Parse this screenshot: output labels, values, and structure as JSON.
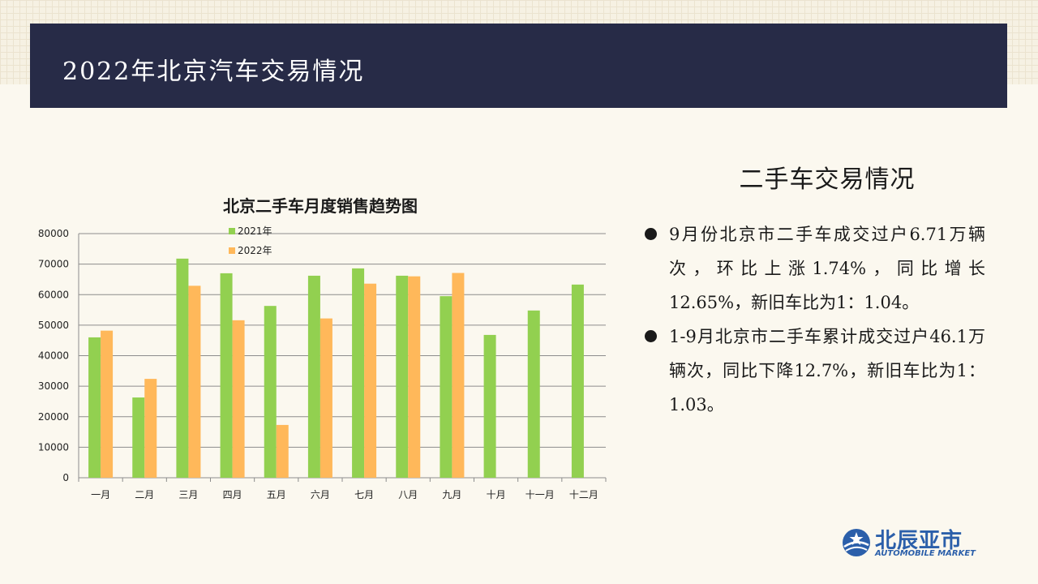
{
  "header": {
    "title": "2022年北京汽车交易情况"
  },
  "chart_data": {
    "type": "bar",
    "title": "北京二手车月度销售趋势图",
    "categories": [
      "一月",
      "二月",
      "三月",
      "四月",
      "五月",
      "六月",
      "七月",
      "八月",
      "九月",
      "十月",
      "十一月",
      "十二月"
    ],
    "series": [
      {
        "name": "2021年",
        "color": "#92d050",
        "values": [
          46000,
          26300,
          71800,
          67000,
          56300,
          66200,
          68600,
          66200,
          59500,
          46800,
          54800,
          63300
        ]
      },
      {
        "name": "2022年",
        "color": "#ffb85a",
        "values": [
          48200,
          32400,
          62900,
          51600,
          17300,
          52200,
          63600,
          66000,
          67100,
          null,
          null,
          null
        ]
      }
    ],
    "ylim": [
      0,
      80000
    ],
    "yticks": [
      "0",
      "10000",
      "20000",
      "30000",
      "40000",
      "50000",
      "60000",
      "70000",
      "80000"
    ],
    "xlabel": "",
    "ylabel": "",
    "grid": true,
    "legend_placement": "top"
  },
  "section": {
    "title": "二手车交易情况",
    "bullets": [
      "9月份北京市二手车成交过户6.71万辆次，环比上涨1.74%，同比增长12.65%，新旧车比为1：1.04。",
      "1-9月北京市二手车累计成交过户46.1万辆次，同比下降12.7%，新旧车比为1：1.03。"
    ]
  },
  "logo": {
    "name_cn": "北辰亚市",
    "name_en": "AUTOMOBILE MARKET",
    "icon": "globe-star-logo-icon"
  }
}
